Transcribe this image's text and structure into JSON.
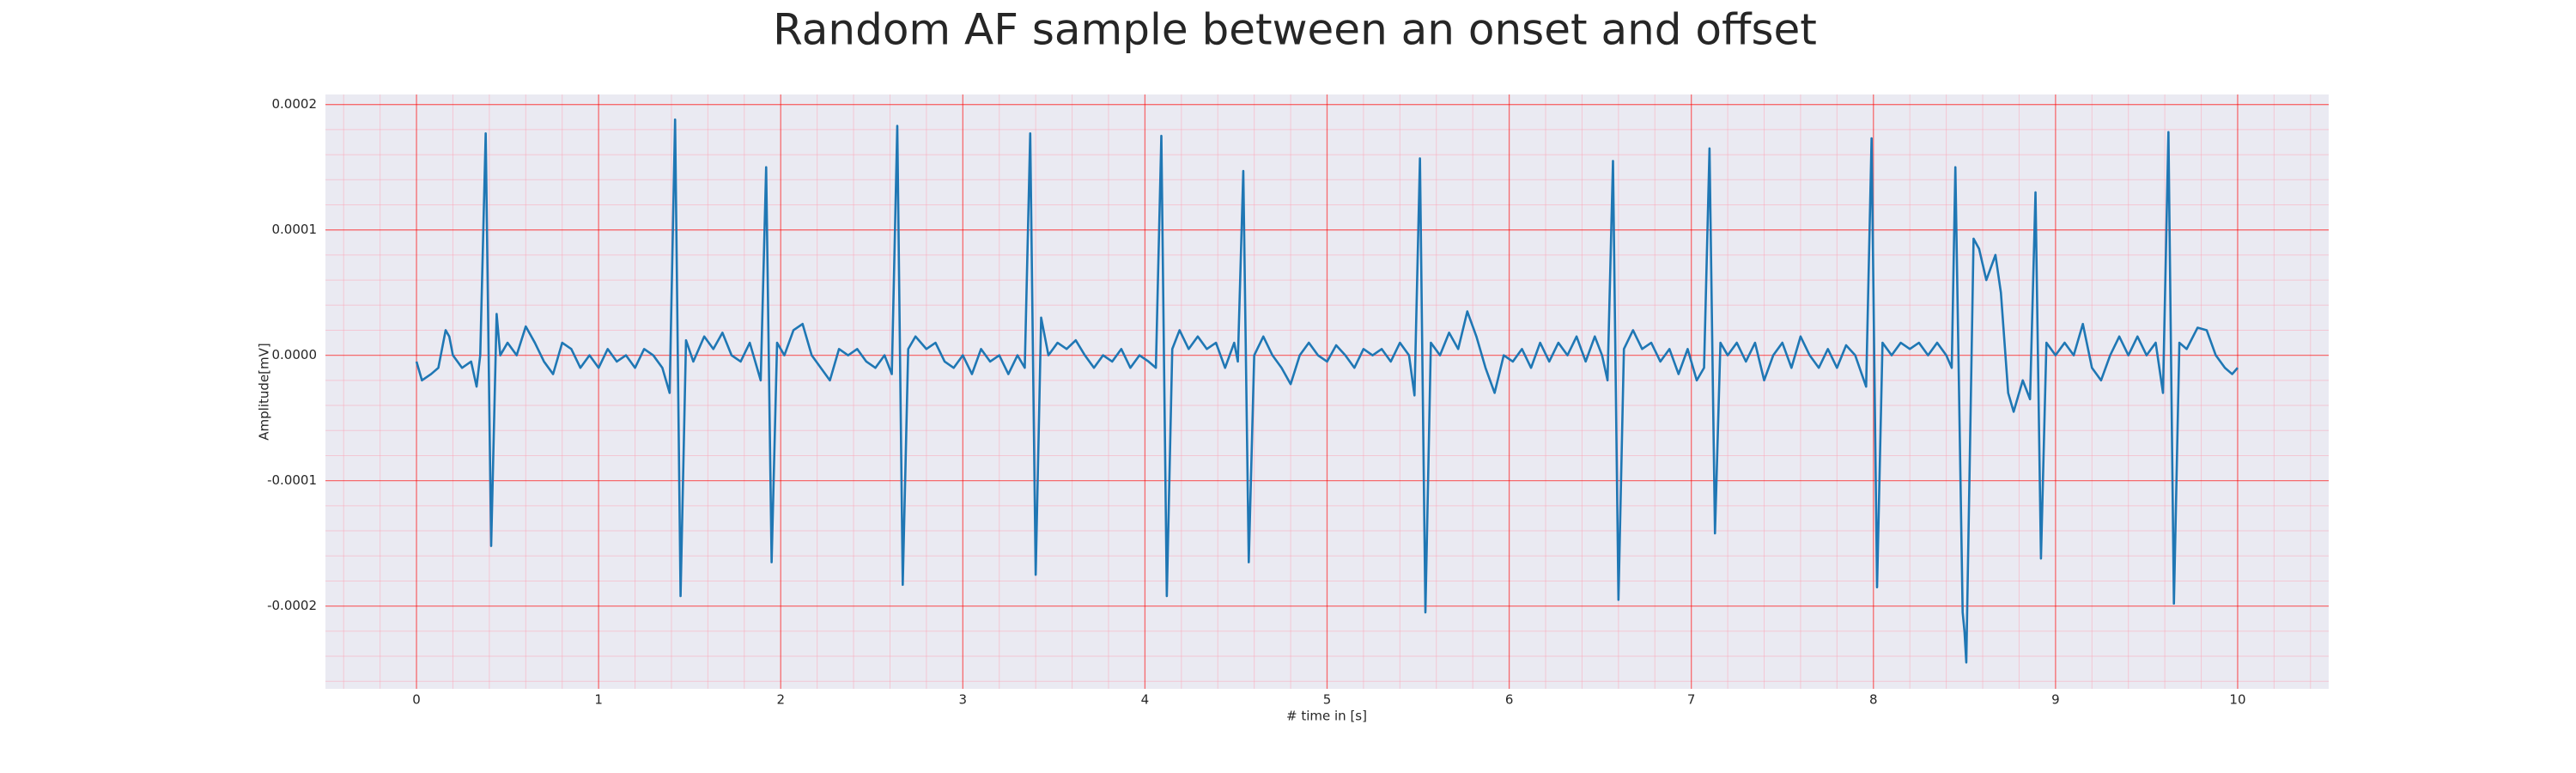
{
  "chart_data": {
    "type": "line",
    "title": "Random AF sample between an onset and offset",
    "xlabel": "# time in [s]",
    "ylabel": "Amplitude[mV]",
    "color": "#1f77b4",
    "grid": true,
    "minor_grid": true,
    "xlim": [
      -0.5,
      10.5
    ],
    "ylim": [
      -0.000266,
      0.000208
    ],
    "xticks": [
      0,
      1,
      2,
      3,
      4,
      5,
      6,
      7,
      8,
      9,
      10
    ],
    "yticks": [
      -0.0002,
      -0.0001,
      {
        "value": 0,
        "label": "0.0000"
      },
      0.0001,
      0.0002
    ],
    "x": [
      0.0,
      0.03,
      0.08,
      0.12,
      0.16,
      0.18,
      0.2,
      0.25,
      0.3,
      0.33,
      0.35,
      0.38,
      0.41,
      0.44,
      0.46,
      0.5,
      0.55,
      0.6,
      0.65,
      0.7,
      0.75,
      0.8,
      0.85,
      0.9,
      0.95,
      1.0,
      1.05,
      1.1,
      1.15,
      1.2,
      1.25,
      1.3,
      1.35,
      1.39,
      1.42,
      1.45,
      1.48,
      1.52,
      1.58,
      1.63,
      1.68,
      1.73,
      1.78,
      1.83,
      1.89,
      1.92,
      1.95,
      1.98,
      2.02,
      2.07,
      2.12,
      2.17,
      2.22,
      2.27,
      2.32,
      2.37,
      2.42,
      2.47,
      2.52,
      2.57,
      2.61,
      2.64,
      2.67,
      2.7,
      2.74,
      2.8,
      2.85,
      2.9,
      2.95,
      3.0,
      3.05,
      3.1,
      3.15,
      3.2,
      3.25,
      3.3,
      3.34,
      3.37,
      3.4,
      3.43,
      3.47,
      3.52,
      3.57,
      3.62,
      3.67,
      3.72,
      3.77,
      3.82,
      3.87,
      3.92,
      3.97,
      4.02,
      4.06,
      4.09,
      4.12,
      4.15,
      4.19,
      4.24,
      4.29,
      4.34,
      4.39,
      4.44,
      4.49,
      4.51,
      4.54,
      4.57,
      4.6,
      4.65,
      4.7,
      4.75,
      4.8,
      4.85,
      4.9,
      4.95,
      5.0,
      5.05,
      5.1,
      5.15,
      5.2,
      5.25,
      5.3,
      5.35,
      5.4,
      5.45,
      5.48,
      5.51,
      5.54,
      5.57,
      5.62,
      5.67,
      5.72,
      5.77,
      5.82,
      5.87,
      5.92,
      5.97,
      6.02,
      6.07,
      6.12,
      6.17,
      6.22,
      6.27,
      6.32,
      6.37,
      6.42,
      6.47,
      6.51,
      6.54,
      6.57,
      6.6,
      6.63,
      6.68,
      6.73,
      6.78,
      6.83,
      6.88,
      6.93,
      6.98,
      7.03,
      7.07,
      7.1,
      7.13,
      7.16,
      7.2,
      7.25,
      7.3,
      7.35,
      7.4,
      7.45,
      7.5,
      7.55,
      7.6,
      7.65,
      7.7,
      7.75,
      7.8,
      7.85,
      7.9,
      7.96,
      7.99,
      8.02,
      8.05,
      8.1,
      8.15,
      8.2,
      8.25,
      8.3,
      8.35,
      8.4,
      8.43,
      8.45,
      8.49,
      8.5,
      8.51,
      8.55,
      8.58,
      8.62,
      8.67,
      8.7,
      8.74,
      8.77,
      8.82,
      8.86,
      8.89,
      8.92,
      8.95,
      9.0,
      9.05,
      9.1,
      9.15,
      9.2,
      9.25,
      9.3,
      9.35,
      9.4,
      9.45,
      9.5,
      9.55,
      9.59,
      9.62,
      9.65,
      9.68,
      9.72,
      9.78,
      9.83,
      9.88,
      9.93,
      9.97,
      10.0
    ],
    "values": [
      -5e-06,
      -2e-05,
      -1.5e-05,
      -1e-05,
      2e-05,
      1.5e-05,
      0.0,
      -1e-05,
      -5e-06,
      -2.5e-05,
      0.0,
      0.000177,
      -0.000152,
      3.3e-05,
      0.0,
      1e-05,
      0.0,
      2.3e-05,
      1e-05,
      -5e-06,
      -1.5e-05,
      1e-05,
      5e-06,
      -1e-05,
      0.0,
      -1e-05,
      5e-06,
      -5e-06,
      0.0,
      -1e-05,
      5e-06,
      0.0,
      -1e-05,
      -3e-05,
      0.000188,
      -0.000192,
      1.2e-05,
      -5e-06,
      1.5e-05,
      5e-06,
      1.8e-05,
      0.0,
      -5e-06,
      1e-05,
      -2e-05,
      0.00015,
      -0.000165,
      1e-05,
      0.0,
      2e-05,
      2.5e-05,
      0.0,
      -1e-05,
      -2e-05,
      5e-06,
      0.0,
      5e-06,
      -5e-06,
      -1e-05,
      0.0,
      -1.5e-05,
      0.000183,
      -0.000183,
      5e-06,
      1.5e-05,
      5e-06,
      1e-05,
      -5e-06,
      -1e-05,
      0.0,
      -1.5e-05,
      5e-06,
      -5e-06,
      0.0,
      -1.5e-05,
      0.0,
      -1e-05,
      0.000177,
      -0.000175,
      3e-05,
      0.0,
      1e-05,
      5e-06,
      1.2e-05,
      0.0,
      -1e-05,
      0.0,
      -5e-06,
      5e-06,
      -1e-05,
      0.0,
      -5e-06,
      -1e-05,
      0.000175,
      -0.000192,
      5e-06,
      2e-05,
      5e-06,
      1.5e-05,
      5e-06,
      1e-05,
      -1e-05,
      1e-05,
      -5e-06,
      0.000147,
      -0.000165,
      0.0,
      1.5e-05,
      0.0,
      -1e-05,
      -2.3e-05,
      0.0,
      1e-05,
      0.0,
      -5e-06,
      8e-06,
      0.0,
      -1e-05,
      5e-06,
      0.0,
      5e-06,
      -5e-06,
      1e-05,
      0.0,
      -3.2e-05,
      0.000157,
      -0.000205,
      1e-05,
      0.0,
      1.8e-05,
      5e-06,
      3.5e-05,
      1.5e-05,
      -1e-05,
      -3e-05,
      0.0,
      -5e-06,
      5e-06,
      -1e-05,
      1e-05,
      -5e-06,
      1e-05,
      0.0,
      1.5e-05,
      -5e-06,
      1.5e-05,
      0.0,
      -2e-05,
      0.000155,
      -0.000195,
      5e-06,
      2e-05,
      5e-06,
      1e-05,
      -5e-06,
      5e-06,
      -1.5e-05,
      5e-06,
      -2e-05,
      -1e-05,
      0.000165,
      -0.000142,
      1e-05,
      0.0,
      1e-05,
      -5e-06,
      1e-05,
      -2e-05,
      0.0,
      1e-05,
      -1e-05,
      1.5e-05,
      0.0,
      -1e-05,
      5e-06,
      -1e-05,
      8e-06,
      0.0,
      -2.5e-05,
      0.000173,
      -0.000185,
      1e-05,
      0.0,
      1e-05,
      5e-06,
      1e-05,
      0.0,
      1e-05,
      0.0,
      -1e-05,
      0.00015,
      -0.000205,
      -0.00022,
      -0.000245,
      9.3e-05,
      8.5e-05,
      6e-05,
      8e-05,
      5e-05,
      -3e-05,
      -4.5e-05,
      -2e-05,
      -3.5e-05,
      0.00013,
      -0.000162,
      1e-05,
      0.0,
      1e-05,
      0.0,
      2.5e-05,
      -1e-05,
      -2e-05,
      0.0,
      1.5e-05,
      0.0,
      1.5e-05,
      0.0,
      1e-05,
      -3e-05,
      0.000178,
      -0.000198,
      1e-05,
      5e-06,
      2.2e-05,
      2e-05,
      0.0,
      -1e-05,
      -1.5e-05,
      -1e-05
    ]
  }
}
